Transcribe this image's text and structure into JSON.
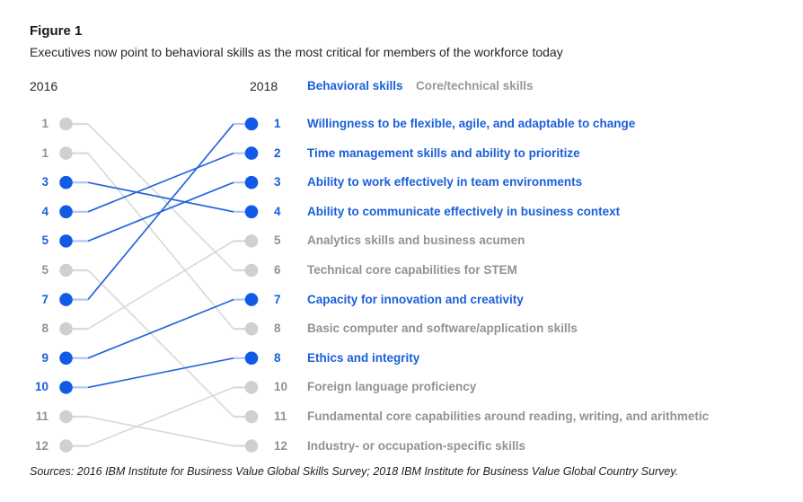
{
  "figure": {
    "label": "Figure 1",
    "subtitle": "Executives now point to behavioral skills as the most critical for members of the workforce today"
  },
  "columns": {
    "left_year": "2016",
    "right_year": "2018"
  },
  "legend": {
    "behavioral": "Behavioral skills",
    "core": "Core/technical skills"
  },
  "sources": "Sources: 2016 IBM Institute for Business Value Global Skills Survey; 2018 IBM Institute for Business Value Global Country Survey.",
  "colors": {
    "blue_text": "#1b5fd9",
    "blue_dot": "#115ae6",
    "blue_line": "#2563e0",
    "blue_stub": "#b3c8f4",
    "gray_text": "#929292",
    "gray_dot": "#ced0d3",
    "gray_line": "#dadada",
    "dark_text": "#262626"
  },
  "chart_data": {
    "type": "slopegraph",
    "title": "Executives now point to behavioral skills as the most critical for members of the workforce today",
    "column_labels": [
      "2016",
      "2018"
    ],
    "legend": [
      "Behavioral skills",
      "Core/technical skills"
    ],
    "note": "rows listed in 2018 rank order (top to bottom); left_slot is the 0-based vertical position of the skill's dot in the 2016 column; ties shown as repeated rank numbers",
    "rows": [
      {
        "rank_2018": "1",
        "rank_2016": "7",
        "left_slot": 6,
        "category": "behavioral",
        "label": "Willingness to be flexible, agile, and adaptable to change"
      },
      {
        "rank_2018": "2",
        "rank_2016": "4",
        "left_slot": 3,
        "category": "behavioral",
        "label": "Time management skills and ability to prioritize"
      },
      {
        "rank_2018": "3",
        "rank_2016": "5",
        "left_slot": 4,
        "category": "behavioral",
        "label": "Ability to work effectively in team environments"
      },
      {
        "rank_2018": "4",
        "rank_2016": "3",
        "left_slot": 2,
        "category": "behavioral",
        "label": "Ability to communicate effectively in business context"
      },
      {
        "rank_2018": "5",
        "rank_2016": "8",
        "left_slot": 7,
        "category": "core",
        "label": "Analytics skills and business acumen"
      },
      {
        "rank_2018": "6",
        "rank_2016": "1",
        "left_slot": 0,
        "category": "core",
        "label": "Technical core capabilities for STEM"
      },
      {
        "rank_2018": "7",
        "rank_2016": "9",
        "left_slot": 8,
        "category": "behavioral",
        "label": "Capacity for innovation and creativity"
      },
      {
        "rank_2018": "8",
        "rank_2016": "1",
        "left_slot": 1,
        "category": "core",
        "label": "Basic computer and software/application skills"
      },
      {
        "rank_2018": "8",
        "rank_2016": "10",
        "left_slot": 9,
        "category": "behavioral",
        "label": "Ethics and integrity"
      },
      {
        "rank_2018": "10",
        "rank_2016": "12",
        "left_slot": 11,
        "category": "core",
        "label": "Foreign language proficiency"
      },
      {
        "rank_2018": "11",
        "rank_2016": "5",
        "left_slot": 5,
        "category": "core",
        "label": "Fundamental core capabilities around reading, writing, and arithmetic"
      },
      {
        "rank_2018": "12",
        "rank_2016": "11",
        "left_slot": 10,
        "category": "core",
        "label": "Industry- or occupation-specific skills"
      }
    ]
  }
}
